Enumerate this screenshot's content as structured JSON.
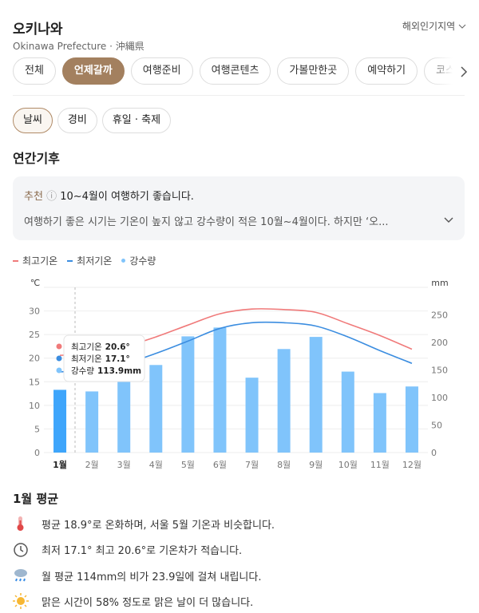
{
  "header": {
    "title": "오키나와",
    "subtitle": "Okinawa Prefecture · 沖縄県",
    "region_link": "해외인기지역"
  },
  "tabs": [
    "전체",
    "언제갈까",
    "여행준비",
    "여행콘텐츠",
    "가볼만한곳",
    "예약하기",
    "코스추천"
  ],
  "subtabs": [
    "날씨",
    "경비",
    "휴일 · 축제"
  ],
  "section_title": "연간기후",
  "recommendation": {
    "badge": "추천",
    "headline": "10~4월이 여행하기 좋습니다.",
    "detail": "여행하기 좋은 시기는 기온이 높지 않고 강수량이 적은 10월~4월이다. 하지만 ‘오..."
  },
  "chart_data": {
    "type": "combo",
    "categories": [
      "1월",
      "2월",
      "3월",
      "4월",
      "5월",
      "6월",
      "7월",
      "8월",
      "9월",
      "10월",
      "11월",
      "12월"
    ],
    "y_label": "℃",
    "y2_label": "mm",
    "ylim": [
      0,
      35
    ],
    "yticks": [
      0,
      5,
      10,
      15,
      20,
      25,
      30
    ],
    "y2lim": [
      0,
      300
    ],
    "y2ticks": [
      0,
      50,
      100,
      150,
      200,
      250
    ],
    "grid": true,
    "series": [
      {
        "name": "최고기온",
        "type": "line",
        "color": "#f07a7a",
        "values": [
          20.6,
          21.0,
          22.4,
          24.5,
          27.0,
          29.4,
          30.4,
          30.3,
          29.7,
          27.3,
          24.8,
          21.9
        ],
        "value_labels": [
          "20.6°",
          null,
          null,
          null,
          null,
          null,
          null,
          null,
          null,
          null,
          null,
          null
        ]
      },
      {
        "name": "최저기온",
        "type": "line",
        "color": "#3b8de0",
        "values": [
          17.1,
          17.5,
          18.8,
          21.0,
          23.6,
          26.3,
          27.5,
          27.5,
          26.8,
          24.5,
          21.6,
          18.9
        ],
        "value_labels": [
          "17.1°",
          null,
          null,
          null,
          null,
          null,
          null,
          null,
          null,
          null,
          null,
          null
        ]
      },
      {
        "name": "강수량",
        "type": "bar",
        "axis": "y2",
        "color": "#80c4fb",
        "highlight_color": "#3ea5fb",
        "values": [
          113.9,
          111,
          140,
          159,
          211,
          227,
          136,
          188,
          210,
          147,
          108,
          120
        ],
        "value_labels": [
          "113.9mm",
          null,
          null,
          null,
          null,
          null,
          null,
          null,
          null,
          null,
          null,
          null
        ]
      }
    ]
  },
  "summary": {
    "title": "1월 평균",
    "items": [
      "평균 18.9°로 온화하며, 서울 5월 기온과 비슷합니다.",
      "최저 17.1° 최고 20.6°로 기온차가 적습니다.",
      "월 평균 114mm의 비가 23.9일에 걸쳐 내립니다.",
      "맑은 시간이 58% 정도로 맑은 날이 더 많습니다."
    ]
  }
}
